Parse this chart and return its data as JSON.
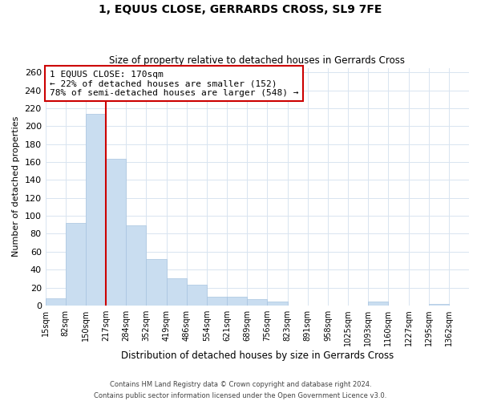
{
  "title": "1, EQUUS CLOSE, GERRARDS CROSS, SL9 7FE",
  "subtitle": "Size of property relative to detached houses in Gerrards Cross",
  "xlabel": "Distribution of detached houses by size in Gerrards Cross",
  "ylabel": "Number of detached properties",
  "bin_labels": [
    "15sqm",
    "82sqm",
    "150sqm",
    "217sqm",
    "284sqm",
    "352sqm",
    "419sqm",
    "486sqm",
    "554sqm",
    "621sqm",
    "689sqm",
    "756sqm",
    "823sqm",
    "891sqm",
    "958sqm",
    "1025sqm",
    "1093sqm",
    "1160sqm",
    "1227sqm",
    "1295sqm",
    "1362sqm"
  ],
  "bar_values": [
    8,
    92,
    214,
    164,
    89,
    52,
    30,
    23,
    10,
    10,
    7,
    4,
    0,
    0,
    0,
    0,
    4,
    0,
    0,
    2,
    0
  ],
  "bar_color": "#c9ddf0",
  "bar_edge_color": "#a8c4e0",
  "vline_x": 3,
  "vline_color": "#cc0000",
  "ylim": [
    0,
    265
  ],
  "yticks": [
    0,
    20,
    40,
    60,
    80,
    100,
    120,
    140,
    160,
    180,
    200,
    220,
    240,
    260
  ],
  "annotation_title": "1 EQUUS CLOSE: 170sqm",
  "annotation_line1": "← 22% of detached houses are smaller (152)",
  "annotation_line2": "78% of semi-detached houses are larger (548) →",
  "annotation_box_color": "#ffffff",
  "annotation_box_edge": "#cc0000",
  "footer1": "Contains HM Land Registry data © Crown copyright and database right 2024.",
  "footer2": "Contains public sector information licensed under the Open Government Licence v3.0.",
  "background_color": "#ffffff",
  "grid_color": "#d8e4f0"
}
